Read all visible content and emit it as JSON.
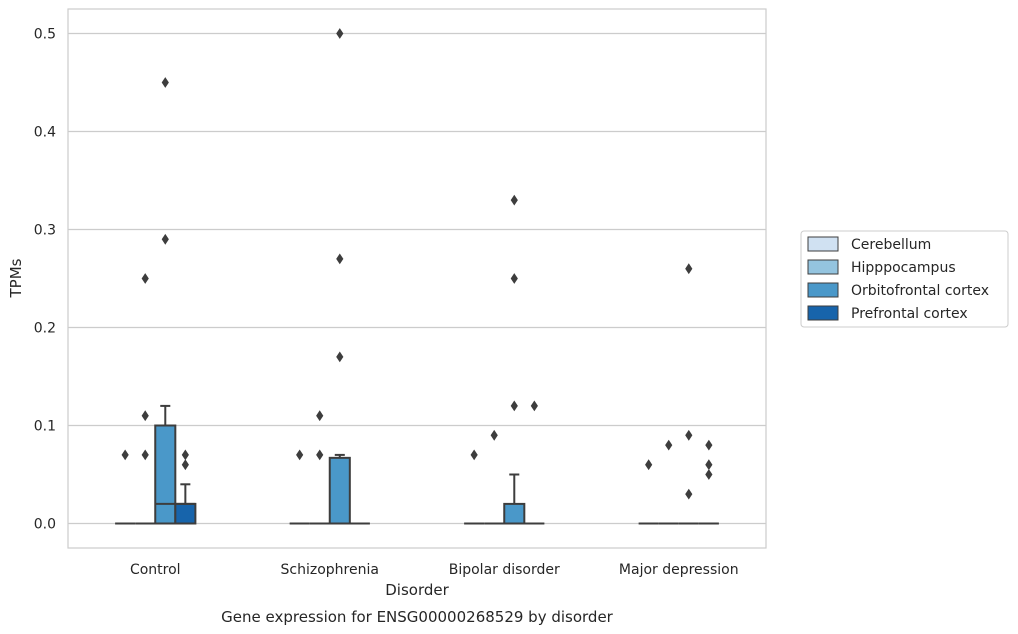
{
  "caption": "Gene expression for ENSG00000268529 by disorder",
  "chart_data": {
    "type": "box",
    "title": "",
    "xlabel": "Disorder",
    "ylabel": "TPMs",
    "categories": [
      "Control",
      "Schizophrenia",
      "Bipolar disorder",
      "Major depression"
    ],
    "ylim": [
      -0.025,
      0.525
    ],
    "yticks": [
      0.0,
      0.1,
      0.2,
      0.3,
      0.4,
      0.5
    ],
    "ytick_labels": [
      "0.0",
      "0.1",
      "0.2",
      "0.3",
      "0.4",
      "0.5"
    ],
    "grid": "horizontal",
    "legend_position": "right",
    "series": [
      {
        "name": "Cerebellum",
        "color": "#d0e1f2",
        "boxes": [
          {
            "q1": 0,
            "median": 0,
            "q3": 0,
            "whisker_low": 0,
            "whisker_high": 0,
            "outliers": [
              0.07
            ]
          },
          {
            "q1": 0,
            "median": 0,
            "q3": 0,
            "whisker_low": 0,
            "whisker_high": 0,
            "outliers": [
              0.07
            ]
          },
          {
            "q1": 0,
            "median": 0,
            "q3": 0,
            "whisker_low": 0,
            "whisker_high": 0,
            "outliers": [
              0.07
            ]
          },
          {
            "q1": 0,
            "median": 0,
            "q3": 0,
            "whisker_low": 0,
            "whisker_high": 0,
            "outliers": [
              0.06
            ]
          }
        ]
      },
      {
        "name": "Hipppocampus",
        "color": "#94c4df",
        "boxes": [
          {
            "q1": 0,
            "median": 0,
            "q3": 0,
            "whisker_low": 0,
            "whisker_high": 0,
            "outliers": [
              0.07,
              0.11,
              0.25
            ]
          },
          {
            "q1": 0,
            "median": 0,
            "q3": 0,
            "whisker_low": 0,
            "whisker_high": 0,
            "outliers": [
              0.07,
              0.11
            ]
          },
          {
            "q1": 0,
            "median": 0,
            "q3": 0,
            "whisker_low": 0,
            "whisker_high": 0,
            "outliers": [
              0.09
            ]
          },
          {
            "q1": 0,
            "median": 0,
            "q3": 0,
            "whisker_low": 0,
            "whisker_high": 0,
            "outliers": [
              0.08
            ]
          }
        ]
      },
      {
        "name": "Orbitofrontal cortex",
        "color": "#4a98c9",
        "boxes": [
          {
            "q1": 0,
            "median": 0.02,
            "q3": 0.1,
            "whisker_low": 0,
            "whisker_high": 0.12,
            "outliers": [
              0.29,
              0.45
            ]
          },
          {
            "q1": 0,
            "median": 0,
            "q3": 0.067,
            "whisker_low": 0,
            "whisker_high": 0.07,
            "outliers": [
              0.17,
              0.27,
              0.5
            ]
          },
          {
            "q1": 0,
            "median": 0,
            "q3": 0.02,
            "whisker_low": 0,
            "whisker_high": 0.05,
            "outliers": [
              0.12,
              0.25,
              0.33
            ]
          },
          {
            "q1": 0,
            "median": 0,
            "q3": 0,
            "whisker_low": 0,
            "whisker_high": 0,
            "outliers": [
              0.03,
              0.09,
              0.26
            ]
          }
        ]
      },
      {
        "name": "Prefrontal cortex",
        "color": "#1764ab",
        "boxes": [
          {
            "q1": 0,
            "median": 0.02,
            "q3": 0.02,
            "whisker_low": 0,
            "whisker_high": 0.04,
            "outliers": [
              0.06,
              0.07
            ]
          },
          {
            "q1": 0,
            "median": 0,
            "q3": 0,
            "whisker_low": 0,
            "whisker_high": 0,
            "outliers": []
          },
          {
            "q1": 0,
            "median": 0,
            "q3": 0,
            "whisker_low": 0,
            "whisker_high": 0,
            "outliers": [
              0.12
            ]
          },
          {
            "q1": 0,
            "median": 0,
            "q3": 0,
            "whisker_low": 0,
            "whisker_high": 0,
            "outliers": [
              0.05,
              0.06,
              0.08
            ]
          }
        ]
      }
    ]
  }
}
